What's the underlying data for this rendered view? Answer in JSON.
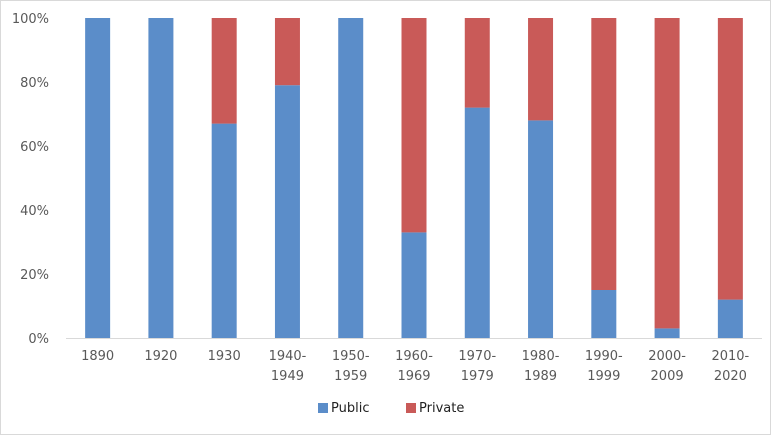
{
  "chart_data": {
    "type": "bar",
    "stacked": true,
    "percent": true,
    "categories": [
      [
        "1890"
      ],
      [
        "1920"
      ],
      [
        "1930"
      ],
      [
        "1940-",
        "1949"
      ],
      [
        "1950-",
        "1959"
      ],
      [
        "1960-",
        "1969"
      ],
      [
        "1970-",
        "1979"
      ],
      [
        "1980-",
        "1989"
      ],
      [
        "1990-",
        "1999"
      ],
      [
        "2000-",
        "2009"
      ],
      [
        "2010-",
        "2020"
      ]
    ],
    "series": [
      {
        "name": "Public",
        "color": "#5b8dc9",
        "values": [
          100,
          100,
          67,
          79,
          100,
          33,
          72,
          68,
          15,
          3,
          12
        ]
      },
      {
        "name": "Private",
        "color": "#c95a58",
        "values": [
          0,
          0,
          33,
          21,
          0,
          67,
          28,
          32,
          85,
          97,
          88
        ]
      }
    ],
    "ylim": [
      0,
      100
    ],
    "yticks": [
      "0%",
      "20%",
      "40%",
      "60%",
      "80%",
      "100%"
    ],
    "grid": false,
    "legend_position": "bottom"
  }
}
